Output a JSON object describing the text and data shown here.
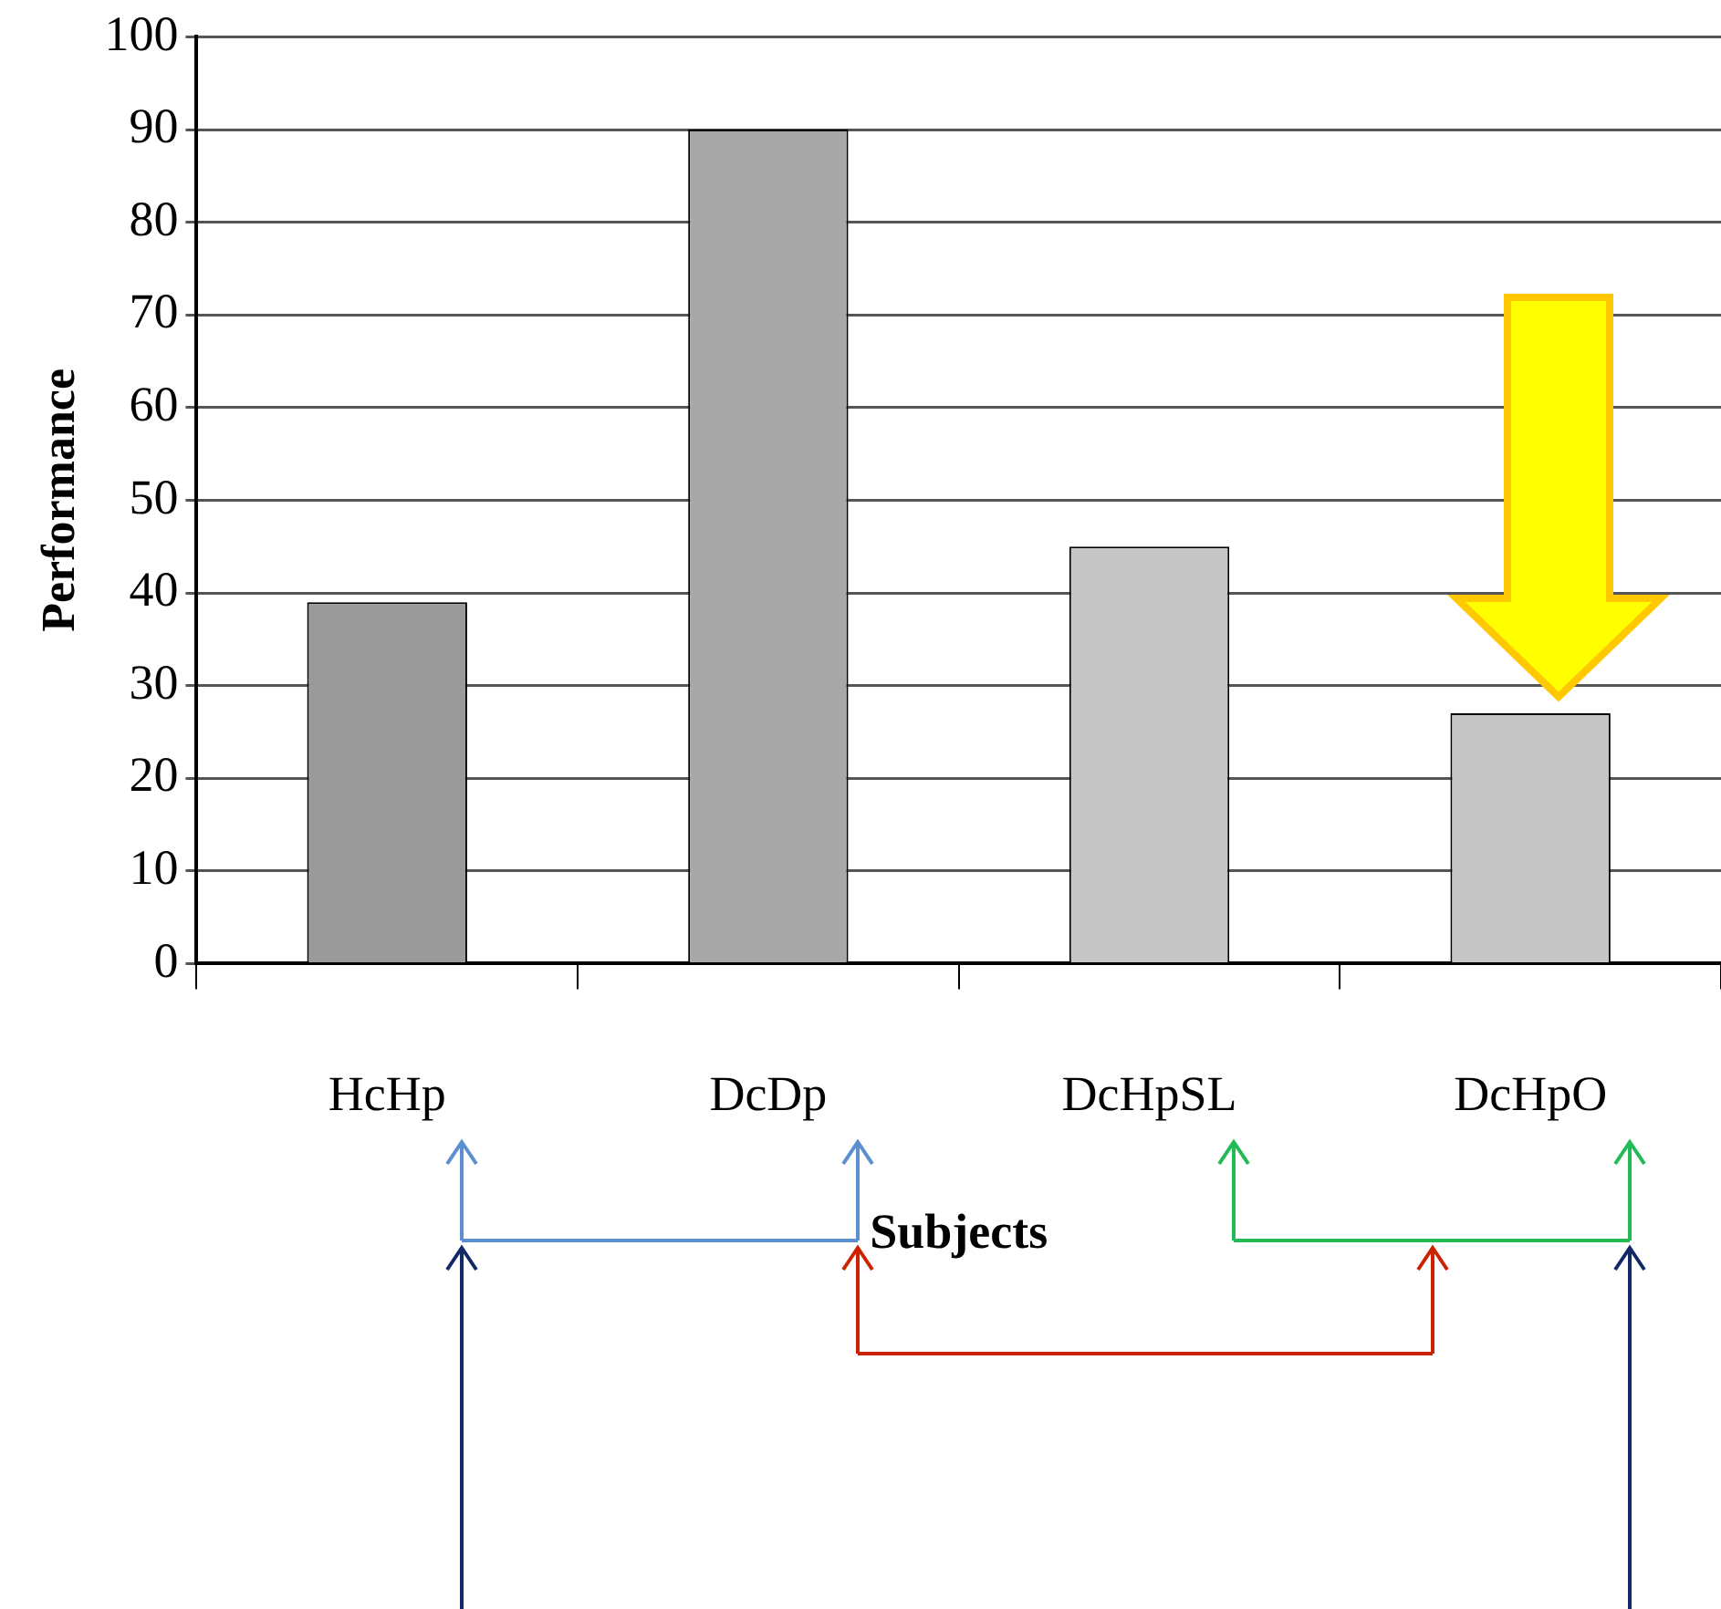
{
  "chart_data": {
    "type": "bar",
    "xlabel": "Subjects",
    "ylabel": "Performance",
    "categories": [
      "HcHp",
      "DcDp",
      "DcHpSL",
      "DcHpO"
    ],
    "values": [
      39,
      90,
      45,
      27
    ],
    "colors": [
      "#9a9a9a",
      "#a8a8a8",
      "#c6c6c6",
      "#c6c6c6"
    ],
    "ylim": [
      0,
      100
    ],
    "yticks": [
      0,
      10,
      20,
      30,
      40,
      50,
      60,
      70,
      80,
      90,
      100
    ],
    "grid": "y",
    "legend": false
  }
}
